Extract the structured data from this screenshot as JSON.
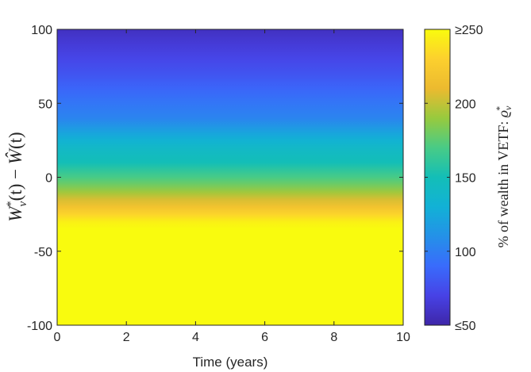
{
  "chart_data": {
    "type": "heatmap",
    "title": "",
    "xlabel": "Time (years)",
    "ylabel": "W_v^*(t) − Ŵ(t)",
    "ylabel_parts": {
      "w": "W",
      "sub": "v",
      "sup": "*",
      "t1": "(t) − ",
      "what": "Ŵ",
      "t2": "(t)"
    },
    "xlim": [
      0,
      10
    ],
    "ylim": [
      -100,
      100
    ],
    "x_ticks": [
      "0",
      "2",
      "4",
      "6",
      "8",
      "10"
    ],
    "x_tick_values": [
      0,
      2,
      4,
      6,
      8,
      10
    ],
    "y_ticks": [
      "-100",
      "-50",
      "0",
      "50",
      "100"
    ],
    "y_tick_values": [
      -100,
      -50,
      0,
      50,
      100
    ],
    "grid": false,
    "colormap": "parula",
    "colorbar": {
      "label": "% of wealth in VETF: ϱ_v^*",
      "label_text": "% of wealth in VETF: ",
      "label_symbol": "ϱ",
      "label_sub": "v",
      "label_sup": "*",
      "clim": [
        50,
        250
      ],
      "tick_labels": [
        "≤50",
        "100",
        "150",
        "200",
        "≥250"
      ],
      "tick_values": [
        50,
        100,
        150,
        200,
        250
      ]
    },
    "profile_note": "value depends on y only (constant across time)",
    "profile": {
      "y": [
        -100,
        -35,
        -30,
        -25,
        -20,
        -15,
        -10,
        -5,
        0,
        5,
        10,
        15,
        20,
        25,
        30,
        35,
        40,
        50,
        60,
        70,
        80,
        90,
        100
      ],
      "value": [
        250,
        250,
        245,
        232,
        218,
        205,
        192,
        180,
        170,
        160,
        150,
        145,
        140,
        132,
        122,
        112,
        103,
        96,
        87,
        79,
        72,
        65,
        58
      ]
    }
  }
}
